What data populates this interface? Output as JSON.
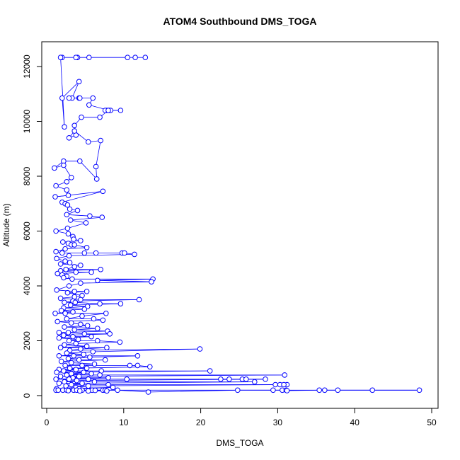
{
  "chart_data": {
    "type": "scatter",
    "title": "ATOM4 Southbound DMS_TOGA",
    "xlabel": "DMS_TOGA",
    "ylabel": "Altitude (m)",
    "xlim": [
      0,
      50
    ],
    "ylim": [
      0,
      12500
    ],
    "xticks": [
      0,
      10,
      20,
      30,
      40,
      50
    ],
    "yticks": [
      0,
      2000,
      4000,
      6000,
      8000,
      10000,
      12000
    ],
    "grid": false,
    "legend": "none",
    "colors": {
      "series": "#0000ff",
      "axis": "#000000"
    },
    "series": [
      {
        "values_note": "",
        "points": [
          [
            12.8,
            12330
          ],
          [
            11.5,
            12330
          ],
          [
            10.5,
            12330
          ],
          [
            5.5,
            12330
          ],
          [
            4.0,
            12330
          ],
          [
            3.8,
            12330
          ],
          [
            2.0,
            12330
          ],
          [
            1.8,
            12330
          ],
          [
            2.3,
            9800
          ],
          [
            2.0,
            10850
          ],
          [
            4.2,
            11450
          ],
          [
            3.3,
            10850
          ],
          [
            2.9,
            10850
          ],
          [
            4.2,
            10850
          ],
          [
            4.3,
            10850
          ],
          [
            6.0,
            10850
          ],
          [
            5.5,
            10600
          ],
          [
            8.1,
            10400
          ],
          [
            7.8,
            10400
          ],
          [
            8.3,
            10400
          ],
          [
            7.6,
            10400
          ],
          [
            9.6,
            10400
          ],
          [
            8.0,
            10400
          ],
          [
            6.9,
            10150
          ],
          [
            4.5,
            10150
          ],
          [
            3.6,
            9850
          ],
          [
            3.8,
            9500
          ],
          [
            2.9,
            9400
          ],
          [
            3.6,
            9650
          ],
          [
            5.4,
            9250
          ],
          [
            7.0,
            9300
          ],
          [
            6.4,
            8350
          ],
          [
            6.5,
            7900
          ],
          [
            4.3,
            8550
          ],
          [
            2.2,
            8550
          ],
          [
            1.0,
            8300
          ],
          [
            2.2,
            8400
          ],
          [
            3.2,
            7950
          ],
          [
            2.6,
            7800
          ],
          [
            1.2,
            7650
          ],
          [
            2.6,
            7500
          ],
          [
            2.8,
            7300
          ],
          [
            1.1,
            7250
          ],
          [
            7.3,
            7450
          ],
          [
            2.0,
            7050
          ],
          [
            2.4,
            7000
          ],
          [
            2.7,
            6950
          ],
          [
            3.0,
            6800
          ],
          [
            4.0,
            6750
          ],
          [
            2.6,
            6600
          ],
          [
            5.6,
            6550
          ],
          [
            7.2,
            6500
          ],
          [
            3.1,
            6400
          ],
          [
            5.1,
            6300
          ],
          [
            2.7,
            6100
          ],
          [
            1.2,
            6000
          ],
          [
            2.8,
            5900
          ],
          [
            3.4,
            5800
          ],
          [
            3.5,
            5700
          ],
          [
            4.4,
            5650
          ],
          [
            2.1,
            5600
          ],
          [
            2.8,
            5550
          ],
          [
            3.2,
            5500
          ],
          [
            3.6,
            5500
          ],
          [
            5.2,
            5400
          ],
          [
            2.4,
            5350
          ],
          [
            1.2,
            5250
          ],
          [
            2.0,
            5200
          ],
          [
            4.9,
            5200
          ],
          [
            6.4,
            5200
          ],
          [
            9.8,
            5200
          ],
          [
            10.1,
            5200
          ],
          [
            11.4,
            5150
          ],
          [
            2.9,
            5100
          ],
          [
            1.3,
            5000
          ],
          [
            2.4,
            4900
          ],
          [
            3.0,
            4850
          ],
          [
            1.8,
            4800
          ],
          [
            4.4,
            4750
          ],
          [
            3.6,
            4700
          ],
          [
            2.5,
            4600
          ],
          [
            7.0,
            4600
          ],
          [
            1.8,
            4550
          ],
          [
            3.8,
            4500
          ],
          [
            5.8,
            4500
          ],
          [
            1.4,
            4450
          ],
          [
            2.0,
            4400
          ],
          [
            2.6,
            4350
          ],
          [
            2.2,
            4300
          ],
          [
            3.3,
            4250
          ],
          [
            13.8,
            4250
          ],
          [
            6.6,
            4200
          ],
          [
            13.6,
            4150
          ],
          [
            4.4,
            4100
          ],
          [
            2.9,
            4000
          ],
          [
            1.3,
            3850
          ],
          [
            3.6,
            3800
          ],
          [
            5.2,
            3800
          ],
          [
            2.7,
            3750
          ],
          [
            4.6,
            3650
          ],
          [
            3.6,
            3600
          ],
          [
            1.8,
            3550
          ],
          [
            4.4,
            3500
          ],
          [
            12.0,
            3500
          ],
          [
            3.4,
            3450
          ],
          [
            2.3,
            3400
          ],
          [
            3.7,
            3400
          ],
          [
            6.9,
            3350
          ],
          [
            9.6,
            3350
          ],
          [
            3.1,
            3300
          ],
          [
            5.3,
            3250
          ],
          [
            2.2,
            3200
          ],
          [
            4.9,
            3150
          ],
          [
            1.9,
            3100
          ],
          [
            3.4,
            3050
          ],
          [
            1.1,
            3000
          ],
          [
            2.4,
            3000
          ],
          [
            7.7,
            3000
          ],
          [
            4.6,
            2900
          ],
          [
            2.6,
            2800
          ],
          [
            6.1,
            2800
          ],
          [
            7.3,
            2750
          ],
          [
            1.4,
            2700
          ],
          [
            3.2,
            2650
          ],
          [
            4.4,
            2600
          ],
          [
            5.3,
            2550
          ],
          [
            2.3,
            2500
          ],
          [
            6.6,
            2450
          ],
          [
            3.6,
            2400
          ],
          [
            7.9,
            2350
          ],
          [
            1.6,
            2300
          ],
          [
            2.8,
            2300
          ],
          [
            4.9,
            2250
          ],
          [
            8.2,
            2250
          ],
          [
            2.2,
            2200
          ],
          [
            3.4,
            2150
          ],
          [
            5.8,
            2150
          ],
          [
            1.6,
            2100
          ],
          [
            4.1,
            2050
          ],
          [
            2.9,
            2000
          ],
          [
            6.6,
            2000
          ],
          [
            9.5,
            1950
          ],
          [
            3.8,
            1900
          ],
          [
            2.3,
            1850
          ],
          [
            5.2,
            1800
          ],
          [
            1.8,
            1750
          ],
          [
            7.8,
            1750
          ],
          [
            4.4,
            1700
          ],
          [
            3.0,
            1650
          ],
          [
            19.9,
            1700
          ],
          [
            6.0,
            1600
          ],
          [
            2.6,
            1550
          ],
          [
            4.8,
            1500
          ],
          [
            1.6,
            1450
          ],
          [
            3.5,
            1450
          ],
          [
            11.8,
            1450
          ],
          [
            5.6,
            1400
          ],
          [
            2.8,
            1350
          ],
          [
            4.2,
            1300
          ],
          [
            7.6,
            1300
          ],
          [
            1.9,
            1250
          ],
          [
            3.2,
            1200
          ],
          [
            6.2,
            1150
          ],
          [
            2.4,
            1100
          ],
          [
            4.6,
            1100
          ],
          [
            10.8,
            1100
          ],
          [
            11.8,
            1100
          ],
          [
            13.4,
            1050
          ],
          [
            3.0,
            1000
          ],
          [
            5.2,
            1000
          ],
          [
            1.6,
            950
          ],
          [
            3.8,
            950
          ],
          [
            2.2,
            900
          ],
          [
            7.1,
            900
          ],
          [
            21.2,
            900
          ],
          [
            1.3,
            850
          ],
          [
            4.8,
            850
          ],
          [
            3.2,
            800
          ],
          [
            5.8,
            800
          ],
          [
            2.6,
            750
          ],
          [
            6.9,
            750
          ],
          [
            30.9,
            750
          ],
          [
            1.8,
            700
          ],
          [
            4.2,
            700
          ],
          [
            3.4,
            650
          ],
          [
            8.0,
            650
          ],
          [
            1.2,
            600
          ],
          [
            2.9,
            600
          ],
          [
            5.4,
            600
          ],
          [
            10.4,
            600
          ],
          [
            22.6,
            600
          ],
          [
            23.7,
            600
          ],
          [
            25.4,
            600
          ],
          [
            25.9,
            600
          ],
          [
            28.4,
            600
          ],
          [
            3.9,
            550
          ],
          [
            2.3,
            500
          ],
          [
            6.2,
            500
          ],
          [
            27.0,
            500
          ],
          [
            1.6,
            450
          ],
          [
            4.6,
            450
          ],
          [
            3.2,
            400
          ],
          [
            8.0,
            400
          ],
          [
            29.7,
            400
          ],
          [
            30.3,
            400
          ],
          [
            31.2,
            400
          ],
          [
            30.8,
            400
          ],
          [
            2.5,
            350
          ],
          [
            5.4,
            350
          ],
          [
            3.8,
            300
          ],
          [
            1.3,
            250
          ],
          [
            8.6,
            300
          ],
          [
            4.2,
            250
          ],
          [
            2.1,
            200
          ],
          [
            1.2,
            200
          ],
          [
            2.6,
            200
          ],
          [
            3.5,
            200
          ],
          [
            3.9,
            200
          ],
          [
            4.6,
            200
          ],
          [
            5.9,
            200
          ],
          [
            7.3,
            200
          ],
          [
            7.6,
            200
          ],
          [
            9.2,
            200
          ],
          [
            13.2,
            130
          ],
          [
            24.8,
            200
          ],
          [
            29.4,
            200
          ],
          [
            30.6,
            200
          ],
          [
            31.1,
            200
          ],
          [
            31.2,
            180
          ],
          [
            35.4,
            200
          ],
          [
            36.1,
            200
          ],
          [
            37.8,
            200
          ],
          [
            42.3,
            200
          ],
          [
            48.4,
            200
          ],
          [
            1.5,
            200
          ],
          [
            2.8,
            180
          ],
          [
            4.3,
            170
          ],
          [
            5.4,
            170
          ],
          [
            7.8,
            170
          ],
          [
            6.3,
            190
          ]
        ]
      }
    ]
  }
}
